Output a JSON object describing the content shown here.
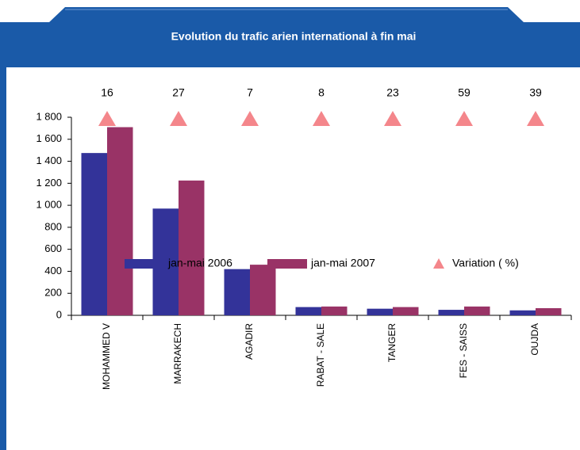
{
  "chart_data": {
    "type": "bar",
    "title": "Evolution du trafic arien international à fin mai",
    "categories": [
      "MOHAMMED V",
      "MARRAKECH",
      "AGADIR",
      "RABAT - SALE",
      "TANGER",
      "FES - SAISS",
      "OUJDA"
    ],
    "series": [
      {
        "name": "jan-mai 2006",
        "color": "#333399",
        "values": [
          1475,
          970,
          420,
          75,
          60,
          50,
          45
        ]
      },
      {
        "name": "jan-mai 2007",
        "color": "#993366",
        "values": [
          1710,
          1225,
          460,
          80,
          75,
          80,
          65
        ]
      },
      {
        "name": "Variation ( %)",
        "type": "marker",
        "color": "#f4868b",
        "values": [
          16,
          27,
          7,
          8,
          23,
          59,
          39
        ]
      }
    ],
    "ylim": [
      0,
      1800
    ],
    "yticks": [
      0,
      200,
      400,
      600,
      800,
      {
        "value": 1000,
        "label": "1 000"
      },
      {
        "value": 1200,
        "label": "1 200"
      },
      {
        "value": 1400,
        "label": "1 400"
      },
      {
        "value": 1600,
        "label": "1 600"
      },
      {
        "value": 1800,
        "label": "1 800"
      }
    ],
    "legend": "bottom"
  }
}
